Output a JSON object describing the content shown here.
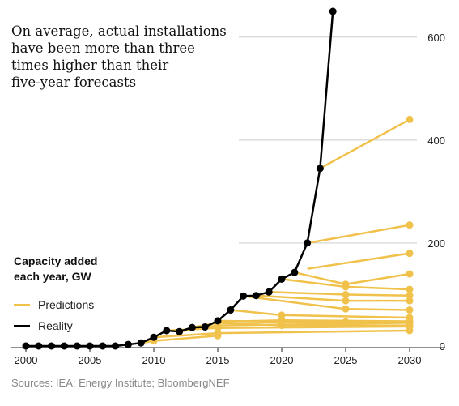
{
  "title_lines": [
    "On average, actual installations",
    "have been more than three",
    "times higher than their",
    "five-year forecasts"
  ],
  "legend": {
    "title_lines": [
      "Capacity added",
      "each year, GW"
    ],
    "items": [
      {
        "label": "Predictions",
        "color": "#f0c24b"
      },
      {
        "label": "Reality",
        "color": "#000000"
      }
    ]
  },
  "source": "Sources: IEA; Energy Institute; BloombergNEF",
  "colors": {
    "predictions": "#f0c24b",
    "reality": "#000000",
    "grid": "#cccccc"
  },
  "chart_data": {
    "type": "line",
    "xlabel": "",
    "ylabel": "",
    "xlim": [
      2000,
      2030
    ],
    "ylim": [
      0,
      650
    ],
    "x_ticks": [
      2000,
      2005,
      2010,
      2015,
      2020,
      2025,
      2030
    ],
    "y_ticks": [
      0,
      200,
      400,
      600
    ],
    "grid": true,
    "series": [
      {
        "name": "Reality",
        "x": [
          2000,
          2001,
          2002,
          2003,
          2004,
          2005,
          2006,
          2007,
          2008,
          2009,
          2010,
          2011,
          2012,
          2013,
          2014,
          2015,
          2016,
          2017,
          2018,
          2019,
          2020,
          2021,
          2022,
          2023,
          2024
        ],
        "y": [
          0,
          0,
          0,
          0,
          0,
          0,
          0,
          0,
          3,
          6,
          17,
          30,
          28,
          36,
          37,
          49,
          70,
          97,
          98,
          105,
          130,
          143,
          200,
          345,
          650
        ]
      },
      {
        "name": "Predictions",
        "lines": [
          {
            "x": [
              2009,
              2010,
              2015
            ],
            "y": [
              6,
              10,
              20
            ]
          },
          {
            "x": [
              2010,
              2015,
              2030
            ],
            "y": [
              17,
              25,
              30
            ]
          },
          {
            "x": [
              2011,
              2015,
              2030
            ],
            "y": [
              30,
              35,
              38
            ]
          },
          {
            "x": [
              2012,
              2015,
              2030
            ],
            "y": [
              28,
              40,
              45
            ]
          },
          {
            "x": [
              2013,
              2015,
              2020,
              2030
            ],
            "y": [
              36,
              45,
              40,
              40
            ]
          },
          {
            "x": [
              2014,
              2015,
              2020,
              2030
            ],
            "y": [
              37,
              47,
              50,
              48
            ]
          },
          {
            "x": [
              2015,
              2020,
              2025,
              2030
            ],
            "y": [
              49,
              47,
              47,
              47
            ]
          },
          {
            "x": [
              2016,
              2020,
              2030
            ],
            "y": [
              70,
              60,
              55
            ]
          },
          {
            "x": [
              2017,
              2025,
              2030
            ],
            "y": [
              97,
              72,
              70
            ]
          },
          {
            "x": [
              2018,
              2025,
              2030
            ],
            "y": [
              98,
              88,
              88
            ]
          },
          {
            "x": [
              2019,
              2025,
              2030
            ],
            "y": [
              105,
              100,
              98
            ]
          },
          {
            "x": [
              2020,
              2025,
              2030
            ],
            "y": [
              130,
              115,
              110
            ]
          },
          {
            "x": [
              2021,
              2025,
              2030
            ],
            "y": [
              143,
              120,
              140
            ]
          },
          {
            "x": [
              2022,
              2030
            ],
            "y": [
              200,
              235
            ]
          },
          {
            "x": [
              2022,
              2030
            ],
            "y": [
              150,
              180
            ]
          },
          {
            "x": [
              2023,
              2030
            ],
            "y": [
              345,
              440
            ]
          }
        ]
      }
    ],
    "y_tick_labels": [
      "0",
      "200",
      "400",
      "600"
    ],
    "x_tick_labels": [
      "2000",
      "2005",
      "2010",
      "2015",
      "2020",
      "2025",
      "2030"
    ]
  }
}
